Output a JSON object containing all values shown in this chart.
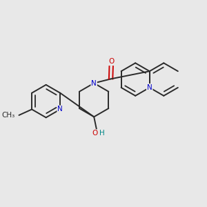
{
  "background_color": "#e8e8e8",
  "bond_color": "#2a2a2a",
  "atom_colors": {
    "N": "#0000cc",
    "O": "#cc0000",
    "H": "#008888",
    "C": "#2a2a2a"
  },
  "figsize": [
    3.0,
    3.0
  ],
  "dpi": 100
}
